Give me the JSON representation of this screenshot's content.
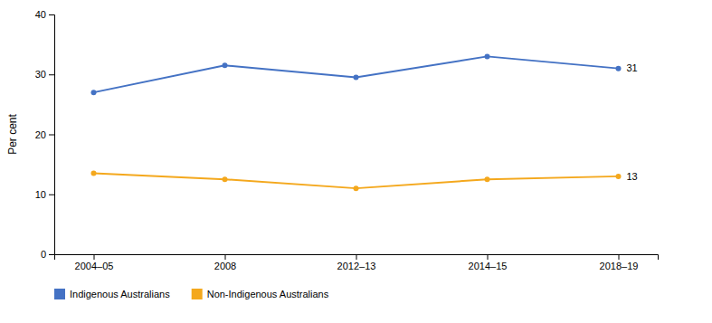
{
  "chart_data": {
    "type": "line",
    "categories": [
      "2004–05",
      "2008",
      "2012–13",
      "2014–15",
      "2018–19"
    ],
    "series": [
      {
        "name": "Indigenous Australians",
        "color": "#4472C4",
        "values": [
          27,
          31.5,
          29.5,
          33,
          31
        ]
      },
      {
        "name": "Non-Indigenous Australians",
        "color": "#F4A81D",
        "values": [
          13.5,
          12.5,
          11,
          12.5,
          13
        ]
      }
    ],
    "ylabel": "Per cent",
    "ylim": [
      0,
      40
    ],
    "yticks": [
      0,
      10,
      20,
      30,
      40
    ],
    "grid": false,
    "legend": "bottom",
    "marker": "circle",
    "annotations": [
      {
        "text": "31",
        "y": 31
      },
      {
        "text": "13",
        "y": 13
      }
    ]
  }
}
